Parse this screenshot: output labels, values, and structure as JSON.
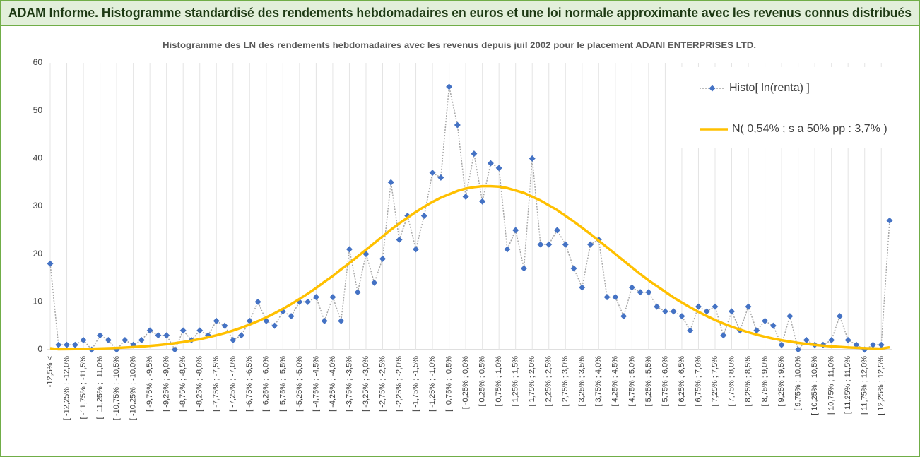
{
  "header": {
    "title": "ADAM Informe. Histogramme standardisé des rendements hebdomadaires en euros et une loi normale approximante avec les revenus connus distribués"
  },
  "chart_data": {
    "type": "line",
    "title": "Histogramme des LN des rendements hebdomadaires avec les revenus depuis juil 2002 pour le placement ADANI ENTERPRISES LTD.",
    "categories": [
      "-12,5% <",
      null,
      "[ -12,25% ; -12,0%",
      null,
      "[ -11,75% ; -11,5%",
      null,
      "[ -11,25% ; -11,0%",
      null,
      "[ -10,75% ; -10,5%",
      null,
      "[ -10,25% ; -10,0%",
      null,
      "[ -9,75% ; -9,5%",
      null,
      "[ -9,25% ; -9,0%",
      null,
      "[ -8,75% ; -8,5%",
      null,
      "[ -8,25% ; -8,0%",
      null,
      "[ -7,75% ; -7,5%",
      null,
      "[ -7,25% ; -7,0%",
      null,
      "[ -6,75% ; -6,5%",
      null,
      "[ -6,25% ; -6,0%",
      null,
      "[ -5,75% ; -5,5%",
      null,
      "[ -5,25% ; -5,0%",
      null,
      "[ -4,75% ; -4,5%",
      null,
      "[ -4,25% ; -4,0%",
      null,
      "[ -3,75% ; -3,5%",
      null,
      "[ -3,25% ; -3,0%",
      null,
      "[ -2,75% ; -2,5%",
      null,
      "[ -2,25% ; -2,0%",
      null,
      "[ -1,75% ; -1,5%",
      null,
      "[ -1,25% ; -1,0%",
      null,
      "[ -0,75% ; -0,5%",
      null,
      "[ -0,25% ; 0,0%",
      null,
      "[ 0,25% ; 0,5%",
      null,
      "[ 0,75% ; 1,0%",
      null,
      "[ 1,25% ; 1,5%",
      null,
      "[ 1,75% ; 2,0%",
      null,
      "[ 2,25% ; 2,5%",
      null,
      "[ 2,75% ; 3,0%",
      null,
      "[ 3,25% ; 3,5%",
      null,
      "[ 3,75% ; 4,0%",
      null,
      "[ 4,25% ; 4,5%",
      null,
      "[ 4,75% ; 5,0%",
      null,
      "[ 5,25% ; 5,5%",
      null,
      "[ 5,75% ; 6,0%",
      null,
      "[ 6,25% ; 6,5%",
      null,
      "[ 6,75% ; 7,0%",
      null,
      "[ 7,25% ; 7,5%",
      null,
      "[ 7,75% ; 8,0%",
      null,
      "[ 8,25% ; 8,5%",
      null,
      "[ 8,75% ; 9,0%",
      null,
      "[ 9,25% ; 9,5%",
      null,
      "[ 9,75% ; 10,0%",
      null,
      "[ 10,25% ; 10,5%",
      null,
      "[ 10,75% ; 11,0%",
      null,
      "[ 11,25% ; 11,5%",
      null,
      "[ 11,75% ; 12,0%",
      null,
      "[ 12,25% ; 12,5%",
      null
    ],
    "series": [
      {
        "name": "Histo[ ln(renta) ]",
        "color": "#4472c4",
        "line_color": "#a6a6a6",
        "marker": "diamond",
        "values": [
          18,
          1,
          1,
          1,
          2,
          0,
          3,
          2,
          0,
          2,
          1,
          2,
          4,
          3,
          3,
          0,
          4,
          2,
          4,
          3,
          6,
          5,
          2,
          3,
          6,
          10,
          6,
          5,
          8,
          7,
          10,
          10,
          11,
          6,
          11,
          6,
          21,
          12,
          20,
          14,
          19,
          35,
          23,
          28,
          21,
          28,
          37,
          36,
          55,
          47,
          32,
          41,
          31,
          39,
          38,
          21,
          25,
          17,
          40,
          22,
          22,
          25,
          22,
          17,
          13,
          22,
          23,
          11,
          11,
          7,
          13,
          12,
          12,
          9,
          8,
          8,
          7,
          4,
          9,
          8,
          9,
          3,
          8,
          4,
          9,
          4,
          6,
          5,
          1,
          7,
          0,
          2,
          1,
          1,
          2,
          7,
          2,
          1,
          0,
          1,
          1,
          27
        ]
      },
      {
        "name": "N( 0,54% ; s a 50% pp : 3,7% )",
        "color": "#ffc000",
        "values": [
          0.3,
          0.08,
          0.1,
          0.12,
          0.15,
          0.19,
          0.24,
          0.29,
          0.36,
          0.44,
          0.54,
          0.65,
          0.79,
          0.94,
          1.13,
          1.35,
          1.59,
          1.88,
          2.2,
          2.58,
          3,
          3.47,
          4,
          4.59,
          5.25,
          5.96,
          6.75,
          7.61,
          8.54,
          9.53,
          10.6,
          11.7,
          12.9,
          14.2,
          15.4,
          16.8,
          18.1,
          19.5,
          20.9,
          22.3,
          23.7,
          25.1,
          26.4,
          27.6,
          28.8,
          29.9,
          30.9,
          31.8,
          32.5,
          33.2,
          33.7,
          34,
          34.2,
          34.2,
          34.1,
          33.8,
          33.3,
          32.8,
          32,
          31.2,
          30.2,
          29.2,
          28,
          26.8,
          25.5,
          24.2,
          22.8,
          21.4,
          20,
          18.6,
          17.2,
          15.8,
          14.5,
          13.3,
          12.1,
          10.9,
          9.86,
          8.85,
          7.9,
          7.02,
          6.21,
          5.47,
          4.8,
          4.19,
          3.64,
          3.14,
          2.7,
          2.31,
          1.98,
          1.68,
          1.42,
          1.2,
          1,
          0.83,
          0.69,
          0.57,
          0.47,
          0.38,
          0.31,
          0.25,
          0.21,
          0.5
        ]
      }
    ],
    "ylim": [
      0,
      60
    ],
    "yticks": [
      0,
      10,
      20,
      30,
      40,
      50,
      60
    ],
    "grid": "x",
    "legend": "top-right"
  }
}
